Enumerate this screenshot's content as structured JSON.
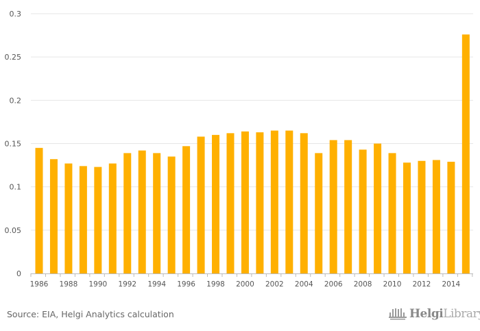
{
  "chart_data": {
    "type": "bar",
    "title": "",
    "xlabel": "",
    "ylabel": "",
    "ylim": [
      0,
      0.3
    ],
    "yticks": [
      "0",
      "0.05",
      "0.1",
      "0.15",
      "0.2",
      "0.25",
      "0.3"
    ],
    "grid": true,
    "bar_color": "#FFB000",
    "categories": [
      "1986",
      "1987",
      "1988",
      "1989",
      "1990",
      "1991",
      "1992",
      "1993",
      "1994",
      "1995",
      "1996",
      "1997",
      "1998",
      "1999",
      "2000",
      "2001",
      "2002",
      "2003",
      "2004",
      "2005",
      "2006",
      "2007",
      "2008",
      "2009",
      "2010",
      "2011",
      "2012",
      "2013",
      "2014",
      "2015"
    ],
    "xtick_labels": [
      "1986",
      "1988",
      "1990",
      "1992",
      "1994",
      "1996",
      "1998",
      "2000",
      "2002",
      "2004",
      "2006",
      "2008",
      "2010",
      "2012",
      "2014"
    ],
    "values": [
      0.145,
      0.132,
      0.127,
      0.124,
      0.123,
      0.127,
      0.139,
      0.142,
      0.139,
      0.135,
      0.147,
      0.158,
      0.16,
      0.162,
      0.164,
      0.163,
      0.165,
      0.165,
      0.162,
      0.139,
      0.154,
      0.154,
      0.143,
      0.15,
      0.139,
      0.128,
      0.13,
      0.131,
      0.129,
      0.276
    ]
  },
  "source": "Source: EIA, Helgi Analytics calculation",
  "logo": {
    "bold": "Helgi",
    "light": "Library."
  }
}
